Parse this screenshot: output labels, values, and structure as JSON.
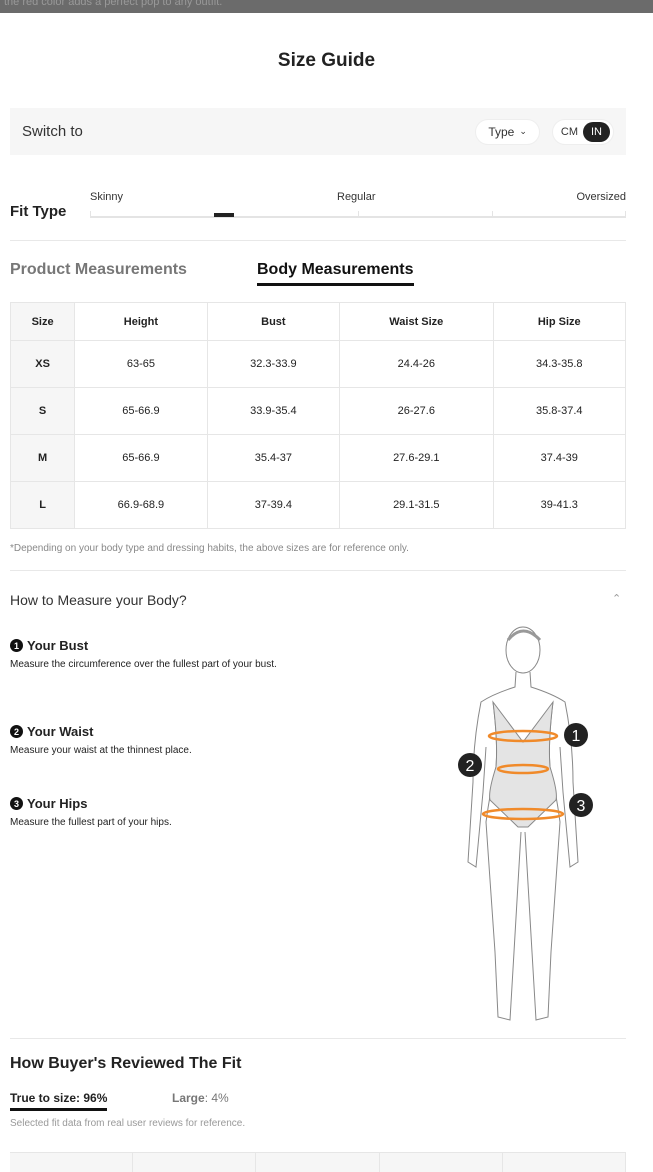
{
  "banner": {
    "text": "the red color adds a perfect pop to any outfit."
  },
  "title": "Size Guide",
  "switch": {
    "label": "Switch to",
    "type_label": "Type",
    "units": [
      "CM",
      "IN"
    ],
    "selected_unit": "IN"
  },
  "fit_type": {
    "label": "Fit Type",
    "scale": [
      "Skinny",
      "Regular",
      "Oversized"
    ],
    "level_percent": 26
  },
  "tabs": [
    {
      "label": "Product Measurements",
      "active": false
    },
    {
      "label": "Body Measurements",
      "active": true
    }
  ],
  "table": {
    "headers": [
      "Size",
      "Height",
      "Bust",
      "Waist Size",
      "Hip Size"
    ],
    "rows": [
      [
        "XS",
        "63-65",
        "32.3-33.9",
        "24.4-26",
        "34.3-35.8"
      ],
      [
        "S",
        "65-66.9",
        "33.9-35.4",
        "26-27.6",
        "35.8-37.4"
      ],
      [
        "M",
        "65-66.9",
        "35.4-37",
        "27.6-29.1",
        "37.4-39"
      ],
      [
        "L",
        "66.9-68.9",
        "37-39.4",
        "29.1-31.5",
        "39-41.3"
      ]
    ]
  },
  "note": "*Depending on your body type and dressing habits, the above sizes are for reference only.",
  "how_to": {
    "title": "How to Measure your Body?",
    "steps": [
      {
        "num": "1",
        "title": "Your Bust",
        "text": "Measure the circumference over the fullest part of your bust."
      },
      {
        "num": "2",
        "title": "Your Waist",
        "text": "Measure your waist at the thinnest place."
      },
      {
        "num": "3",
        "title": "Your Hips",
        "text": "Measure the fullest part of your hips."
      }
    ]
  },
  "reviews": {
    "title": "How Buyer's Reviewed The Fit",
    "true_to_size": "True to size: 96%",
    "large_label": "Large",
    "large_value": ": 4%",
    "note": "Selected fit data from real user reviews for reference."
  },
  "colors": {
    "accent": "#f08a2a",
    "dark": "#222222"
  }
}
